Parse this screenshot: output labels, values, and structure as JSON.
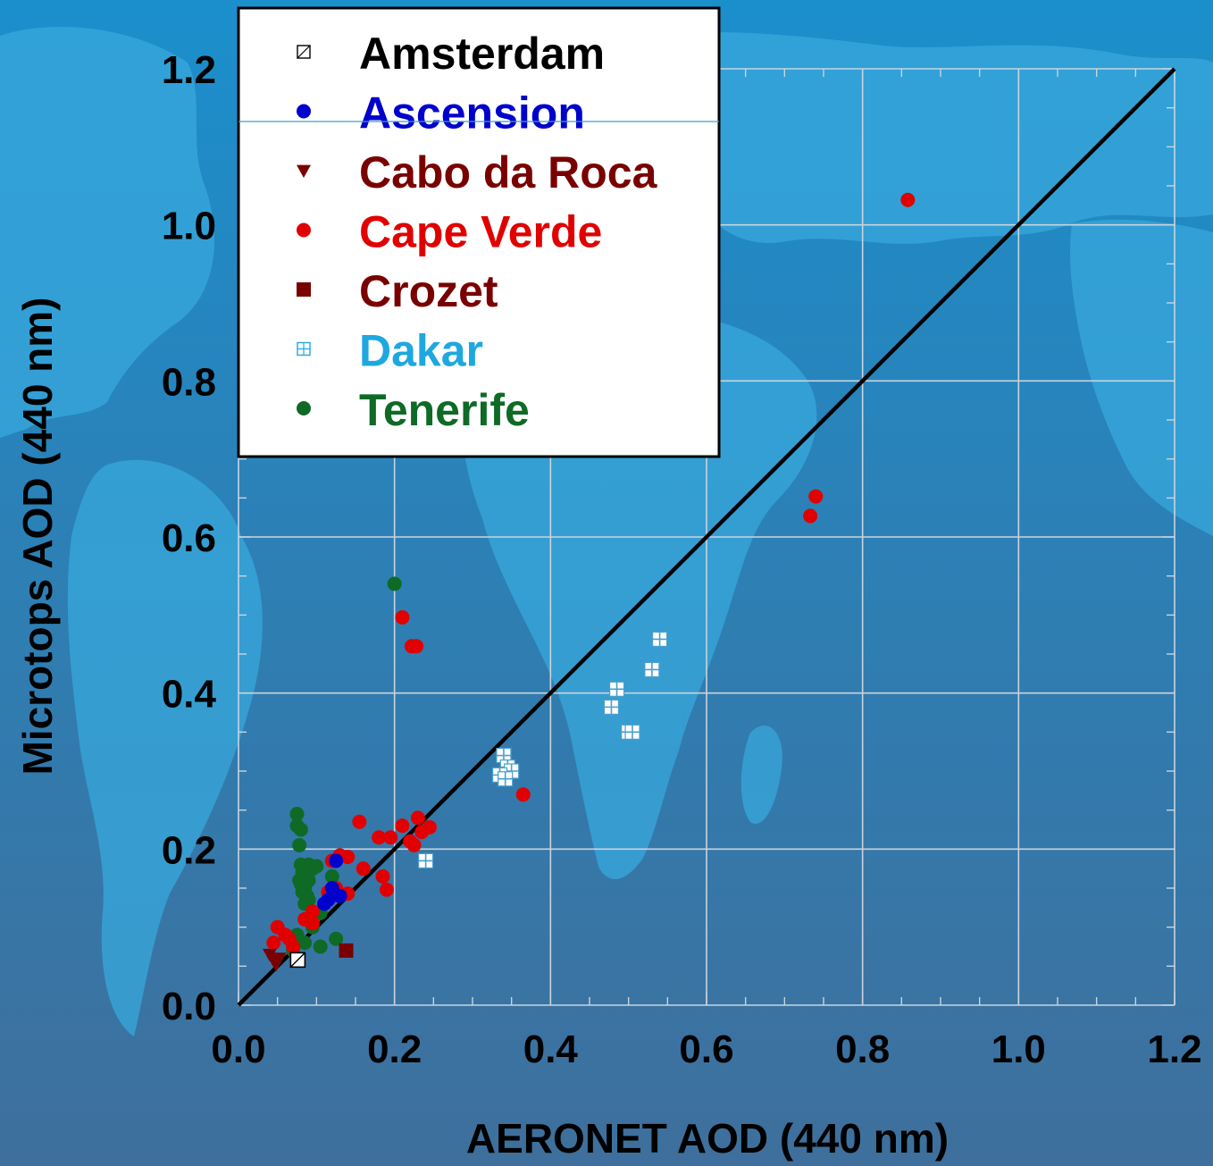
{
  "colors": {
    "background_top": "#1b8fcc",
    "background_bottom": "#3f6f9c",
    "land": "#38a8dc",
    "grid": "#c9d4dd",
    "one_to_one_line": "#000000"
  },
  "chart_data": {
    "type": "scatter",
    "title": "",
    "xlabel": "AERONET AOD (440 nm)",
    "ylabel": "Microtops AOD (440 nm)",
    "xlim": [
      0.0,
      1.2
    ],
    "ylim": [
      0.0,
      1.2
    ],
    "x_ticks": [
      "0.0",
      "0.2",
      "0.4",
      "0.6",
      "0.8",
      "1.0",
      "1.2"
    ],
    "y_ticks": [
      "0.0",
      "0.2",
      "0.4",
      "0.6",
      "0.8",
      "1.0",
      "1.2"
    ],
    "grid": true,
    "legend_position": "top-left",
    "reference_line": "1:1",
    "series": [
      {
        "name": "Amsterdam",
        "marker": "square-hatch",
        "color": "#000000",
        "points": [
          [
            0.076,
            0.058
          ]
        ]
      },
      {
        "name": "Ascension",
        "marker": "circle",
        "color": "#0000cc",
        "points": [
          [
            0.115,
            0.135
          ],
          [
            0.12,
            0.15
          ],
          [
            0.125,
            0.185
          ],
          [
            0.13,
            0.14
          ],
          [
            0.11,
            0.13
          ]
        ]
      },
      {
        "name": "Cabo da Roca",
        "marker": "triangle-down",
        "color": "#7a0000",
        "points": [
          [
            0.04,
            0.065
          ],
          [
            0.045,
            0.058
          ],
          [
            0.048,
            0.052
          ],
          [
            0.052,
            0.06
          ]
        ]
      },
      {
        "name": "Cape Verde",
        "marker": "circle",
        "color": "#e00000",
        "points": [
          [
            0.858,
            1.032
          ],
          [
            0.74,
            0.652
          ],
          [
            0.733,
            0.627
          ],
          [
            0.21,
            0.497
          ],
          [
            0.222,
            0.46
          ],
          [
            0.228,
            0.46
          ],
          [
            0.365,
            0.27
          ],
          [
            0.155,
            0.235
          ],
          [
            0.23,
            0.24
          ],
          [
            0.21,
            0.23
          ],
          [
            0.245,
            0.228
          ],
          [
            0.235,
            0.222
          ],
          [
            0.18,
            0.215
          ],
          [
            0.195,
            0.215
          ],
          [
            0.22,
            0.21
          ],
          [
            0.225,
            0.205
          ],
          [
            0.13,
            0.192
          ],
          [
            0.14,
            0.19
          ],
          [
            0.12,
            0.185
          ],
          [
            0.16,
            0.175
          ],
          [
            0.185,
            0.165
          ],
          [
            0.19,
            0.148
          ],
          [
            0.14,
            0.143
          ],
          [
            0.115,
            0.145
          ],
          [
            0.125,
            0.15
          ],
          [
            0.12,
            0.14
          ],
          [
            0.095,
            0.12
          ],
          [
            0.085,
            0.11
          ],
          [
            0.095,
            0.105
          ],
          [
            0.05,
            0.1
          ],
          [
            0.06,
            0.09
          ],
          [
            0.045,
            0.08
          ],
          [
            0.065,
            0.085
          ],
          [
            0.07,
            0.075
          ]
        ]
      },
      {
        "name": "Crozet",
        "marker": "square",
        "color": "#7a0000",
        "points": [
          [
            0.138,
            0.07
          ]
        ]
      },
      {
        "name": "Dakar",
        "marker": "square-grid",
        "color": "#ffffff",
        "points": [
          [
            0.54,
            0.469
          ],
          [
            0.53,
            0.43
          ],
          [
            0.485,
            0.405
          ],
          [
            0.478,
            0.382
          ],
          [
            0.5,
            0.35
          ],
          [
            0.505,
            0.35
          ],
          [
            0.34,
            0.32
          ],
          [
            0.345,
            0.305
          ],
          [
            0.35,
            0.3
          ],
          [
            0.335,
            0.295
          ],
          [
            0.342,
            0.29
          ],
          [
            0.24,
            0.185
          ]
        ]
      },
      {
        "name": "Tenerife",
        "marker": "circle",
        "color": "#0e6a25",
        "points": [
          [
            0.2,
            0.54
          ],
          [
            0.075,
            0.245
          ],
          [
            0.075,
            0.23
          ],
          [
            0.08,
            0.225
          ],
          [
            0.078,
            0.205
          ],
          [
            0.08,
            0.18
          ],
          [
            0.09,
            0.18
          ],
          [
            0.1,
            0.178
          ],
          [
            0.095,
            0.175
          ],
          [
            0.082,
            0.17
          ],
          [
            0.085,
            0.165
          ],
          [
            0.078,
            0.16
          ],
          [
            0.08,
            0.155
          ],
          [
            0.09,
            0.16
          ],
          [
            0.085,
            0.15
          ],
          [
            0.082,
            0.145
          ],
          [
            0.088,
            0.14
          ],
          [
            0.09,
            0.135
          ],
          [
            0.085,
            0.13
          ],
          [
            0.12,
            0.165
          ],
          [
            0.105,
            0.118
          ],
          [
            0.095,
            0.1
          ],
          [
            0.075,
            0.09
          ],
          [
            0.065,
            0.085
          ],
          [
            0.085,
            0.08
          ],
          [
            0.125,
            0.085
          ],
          [
            0.105,
            0.075
          ],
          [
            0.07,
            0.07
          ]
        ]
      }
    ]
  }
}
